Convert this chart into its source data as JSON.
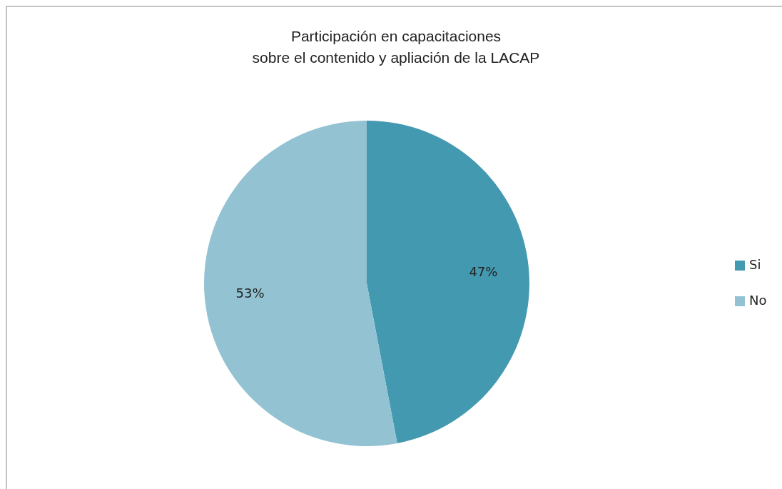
{
  "chart_data": {
    "type": "pie",
    "title": "Participación en capacitaciones\nsobre el contenido y apliación de la LACAP",
    "categories": [
      "Si",
      "No"
    ],
    "values": [
      47,
      53
    ],
    "value_labels": [
      "47%",
      "53%"
    ],
    "colors": [
      "#4399b0",
      "#93c2d3"
    ],
    "legend": "right"
  }
}
